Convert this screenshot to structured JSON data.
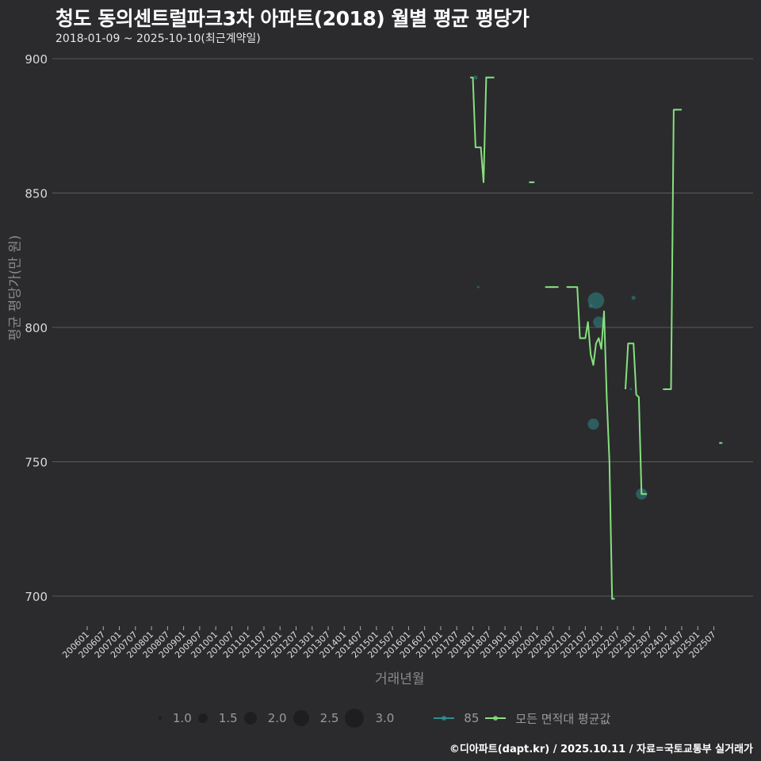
{
  "header": {
    "title": "청도 동의센트럴파크3차 아파트(2018) 월별 평균 평당가",
    "subtitle": "2018-01-09 ~ 2025-10-10(최근계약일)"
  },
  "axes": {
    "ylabel": "평균 평당가(만 원)",
    "xlabel": "거래년월"
  },
  "legend": {
    "sizes": [
      {
        "label": "1.0",
        "size": 4
      },
      {
        "label": "1.5",
        "size": 12
      },
      {
        "label": "2.0",
        "size": 16
      },
      {
        "label": "2.5",
        "size": 20
      },
      {
        "label": "3.0",
        "size": 24
      }
    ],
    "series": [
      {
        "label": "85",
        "color": "#2f8f8f"
      },
      {
        "label": "모든 면적대 평균값",
        "color": "#86e07e"
      }
    ]
  },
  "footer": {
    "credit": "©디아파트(dapt.kr) / 2025.10.11 / 자료=국토교통부 실거래가"
  },
  "colors": {
    "background": "#2b2b2d",
    "grid": "#5a5a5a",
    "line": "#86e07e",
    "bubble": "#2f8080"
  },
  "chart_data": {
    "type": "line",
    "title": "청도 동의센트럴파크3차 아파트(2018) 월별 평균 평당가",
    "subtitle": "2018-01-09 ~ 2025-10-10(최근계약일)",
    "xlabel": "거래년월",
    "ylabel": "평균 평당가(만 원)",
    "ylim": [
      688,
      903
    ],
    "yticks": [
      700,
      750,
      800,
      850,
      900
    ],
    "grid": true,
    "legend_position": "bottom",
    "xticks": [
      "200601",
      "200607",
      "200701",
      "200707",
      "200801",
      "200807",
      "200901",
      "200907",
      "201001",
      "201007",
      "201101",
      "201107",
      "201201",
      "201207",
      "201301",
      "201307",
      "201401",
      "201407",
      "201501",
      "201507",
      "201601",
      "201607",
      "201701",
      "201707",
      "201801",
      "201807",
      "201901",
      "201907",
      "202001",
      "202007",
      "202101",
      "202107",
      "202201",
      "202207",
      "202301",
      "202307",
      "202401",
      "202407",
      "202501",
      "202507"
    ],
    "series": [
      {
        "name": "모든 면적대 평균값",
        "points": [
          {
            "x": "201712",
            "y": 893
          },
          {
            "x": "201801",
            "y": 893
          },
          {
            "x": "201802",
            "y": 867
          },
          {
            "x": "201803",
            "y": 867
          },
          {
            "x": "201804",
            "y": 867
          },
          {
            "x": "201805",
            "y": 854
          },
          {
            "x": "201806",
            "y": 893
          },
          {
            "x": "201807",
            "y": 893
          },
          {
            "x": "201808",
            "y": 893
          },
          {
            "x": "201809",
            "y": 893
          },
          {
            "x": "201910",
            "y": 854
          },
          {
            "x": "201911",
            "y": 854
          },
          {
            "x": "201912",
            "y": 854
          },
          {
            "x": "202004",
            "y": 815
          },
          {
            "x": "202005",
            "y": 815
          },
          {
            "x": "202006",
            "y": 815
          },
          {
            "x": "202007",
            "y": 815
          },
          {
            "x": "202008",
            "y": 815
          },
          {
            "x": "202009",
            "y": 815
          },
          {
            "x": "202012",
            "y": 815
          },
          {
            "x": "202101",
            "y": 815
          },
          {
            "x": "202102",
            "y": 815
          },
          {
            "x": "202103",
            "y": 815
          },
          {
            "x": "202104",
            "y": 815
          },
          {
            "x": "202105",
            "y": 796
          },
          {
            "x": "202106",
            "y": 796
          },
          {
            "x": "202107",
            "y": 796
          },
          {
            "x": "202108",
            "y": 802
          },
          {
            "x": "202109",
            "y": 790
          },
          {
            "x": "202110",
            "y": 786
          },
          {
            "x": "202111",
            "y": 794
          },
          {
            "x": "202112",
            "y": 796
          },
          {
            "x": "202201",
            "y": 792
          },
          {
            "x": "202202",
            "y": 806
          },
          {
            "x": "202203",
            "y": 774
          },
          {
            "x": "202204",
            "y": 750
          },
          {
            "x": "202205",
            "y": 699
          },
          {
            "x": "202206",
            "y": 699
          },
          {
            "x": "202210",
            "y": 777
          },
          {
            "x": "202211",
            "y": 794
          },
          {
            "x": "202212",
            "y": 794
          },
          {
            "x": "202301",
            "y": 794
          },
          {
            "x": "202302",
            "y": 775
          },
          {
            "x": "202303",
            "y": 774
          },
          {
            "x": "202304",
            "y": 738
          },
          {
            "x": "202305",
            "y": 738
          },
          {
            "x": "202306",
            "y": 738
          },
          {
            "x": "202312",
            "y": 777
          },
          {
            "x": "202401",
            "y": 777
          },
          {
            "x": "202402",
            "y": 777
          },
          {
            "x": "202403",
            "y": 777
          },
          {
            "x": "202404",
            "y": 881
          },
          {
            "x": "202405",
            "y": 881
          },
          {
            "x": "202406",
            "y": 881
          },
          {
            "x": "202407",
            "y": 881
          },
          {
            "x": "202509",
            "y": 757
          },
          {
            "x": "202510",
            "y": 757
          }
        ]
      },
      {
        "name": "85",
        "type": "scatter",
        "points": [
          {
            "x": "201802",
            "y": 893,
            "size": 1.2
          },
          {
            "x": "201803",
            "y": 815,
            "size": 1.0
          },
          {
            "x": "201806",
            "y": 893,
            "size": 1.0
          },
          {
            "x": "201807",
            "y": 893,
            "size": 1.0
          },
          {
            "x": "201911",
            "y": 854,
            "size": 1.0
          },
          {
            "x": "202006",
            "y": 815,
            "size": 1.0
          },
          {
            "x": "202007",
            "y": 815,
            "size": 1.0
          },
          {
            "x": "202101",
            "y": 815,
            "size": 1.0
          },
          {
            "x": "202106",
            "y": 796,
            "size": 1.0
          },
          {
            "x": "202109",
            "y": 808,
            "size": 1.2
          },
          {
            "x": "202110",
            "y": 764,
            "size": 2.0
          },
          {
            "x": "202111",
            "y": 810,
            "size": 2.6
          },
          {
            "x": "202112",
            "y": 802,
            "size": 2.0
          },
          {
            "x": "202205",
            "y": 699,
            "size": 1.0
          },
          {
            "x": "202212",
            "y": 777,
            "size": 1.0
          },
          {
            "x": "202301",
            "y": 811,
            "size": 1.2
          },
          {
            "x": "202304",
            "y": 738,
            "size": 2.0
          },
          {
            "x": "202401",
            "y": 777,
            "size": 1.0
          },
          {
            "x": "202405",
            "y": 881,
            "size": 1.0
          },
          {
            "x": "202510",
            "y": 757,
            "size": 1.0
          }
        ]
      }
    ]
  }
}
